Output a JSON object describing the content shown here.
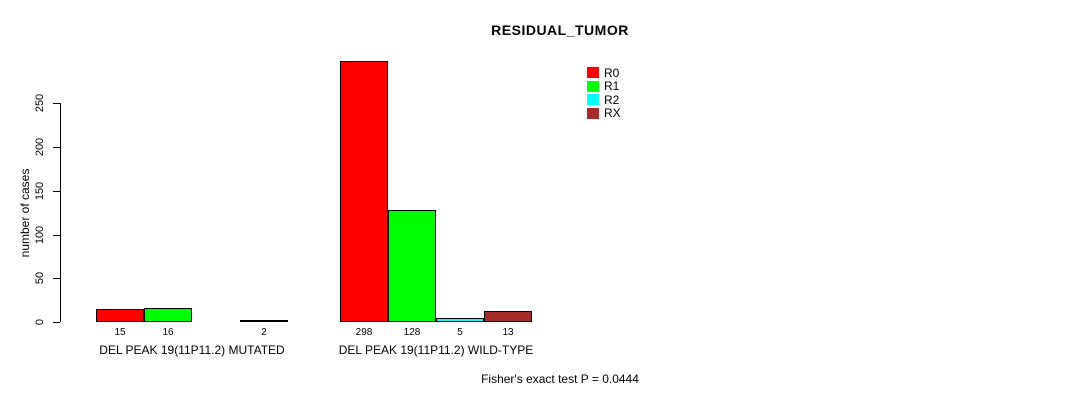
{
  "chart_data": {
    "type": "bar",
    "title": "RESIDUAL_TUMOR",
    "ylabel": "number of cases",
    "xlabel": "",
    "categories": [
      "DEL PEAK 19(11P11.2) MUTATED",
      "DEL PEAK 19(11P11.2) WILD-TYPE"
    ],
    "series": [
      {
        "name": "R0",
        "color": "#ff0000",
        "values": [
          15,
          298
        ]
      },
      {
        "name": "R1",
        "color": "#00ff00",
        "values": [
          16,
          128
        ]
      },
      {
        "name": "R2",
        "color": "#00ffff",
        "values": [
          0,
          5
        ]
      },
      {
        "name": "RX",
        "color": "#a52a2a",
        "values": [
          2,
          13
        ]
      }
    ],
    "bar_value_labels": [
      "15",
      "16",
      "",
      "2",
      "298",
      "128",
      "5",
      "13"
    ],
    "yticks": [
      0,
      50,
      100,
      150,
      200,
      250
    ],
    "ylim": [
      0,
      260
    ],
    "grid": false,
    "legend_position": "top-right",
    "annotation": "Fisher's exact test P = 0.0444"
  }
}
